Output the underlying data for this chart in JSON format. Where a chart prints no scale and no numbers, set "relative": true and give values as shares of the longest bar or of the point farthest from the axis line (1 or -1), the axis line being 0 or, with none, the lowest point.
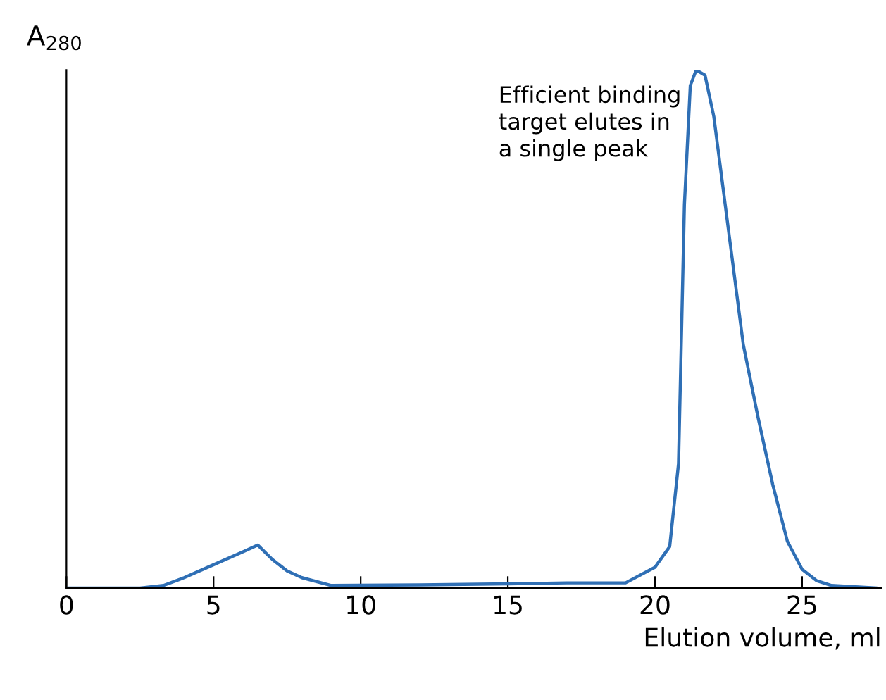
{
  "chart_data": {
    "type": "line",
    "relative": true,
    "xlabel": "Elution volume, ml",
    "ylabel": "A$_{280}$",
    "annotations": [
      "Efficient binding\ntarget elutes in\na single peak"
    ],
    "xlim": [
      0,
      27.7
    ],
    "xticks": [
      0,
      5,
      10,
      15,
      20,
      25
    ],
    "grid": false,
    "legend": false,
    "marker": "none",
    "line_style": "solid",
    "series": [
      {
        "color": "#2f6fb5",
        "x": [
          0,
          2.5,
          3.3,
          4,
          5,
          6,
          6.5,
          7,
          7.5,
          8,
          9,
          12,
          15,
          17,
          19,
          20,
          20.5,
          20.8,
          21,
          21.2,
          21.4,
          21.7,
          22,
          22.5,
          23,
          23.5,
          24,
          24.5,
          25,
          25.5,
          26,
          27.5
        ],
        "values": [
          0,
          0,
          0.005,
          0.02,
          0.045,
          0.07,
          0.083,
          0.055,
          0.033,
          0.02,
          0.005,
          0.006,
          0.008,
          0.01,
          0.01,
          0.04,
          0.08,
          0.24,
          0.74,
          0.97,
          1,
          0.99,
          0.91,
          0.69,
          0.47,
          0.33,
          0.2,
          0.09,
          0.036,
          0.014,
          0.005,
          0
        ]
      }
    ]
  }
}
